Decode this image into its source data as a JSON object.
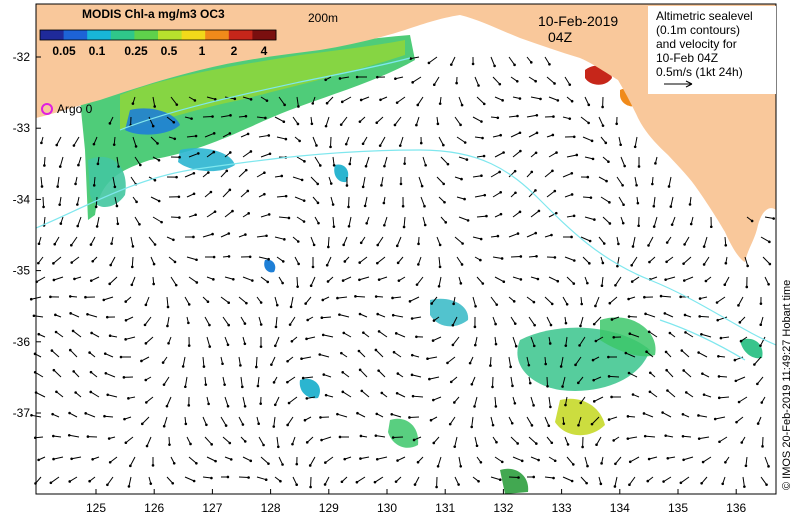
{
  "colorbar": {
    "title": "MODIS Chl-a mg/m3 OC3",
    "ticks": [
      "0.05",
      "0.1",
      "0.25",
      "0.5",
      "1",
      "2",
      "4"
    ],
    "colors": [
      "#1f2a9a",
      "#1d63d6",
      "#18b5d8",
      "#2fc78a",
      "#5fd14b",
      "#b7e02d",
      "#f2d91a",
      "#f08a1a",
      "#c6261a",
      "#7a0f0f"
    ]
  },
  "depth_label": "200m",
  "date_label": "10-Feb-2019",
  "time_label": "04Z",
  "legend": {
    "lines": [
      "Altimetric sealevel",
      "(0.1m contours)",
      "and velocity for",
      "10-Feb 04Z",
      "0.5m/s (1kt 24h)"
    ]
  },
  "argo_label": "Argo 0",
  "credit": "© IMOS 20-Feb-2019 11:49:27 Hobart time",
  "axes": {
    "lat_ticks": [
      "-32",
      "-33",
      "-34",
      "-35",
      "-36",
      "-37"
    ],
    "lon_ticks": [
      "125",
      "126",
      "127",
      "128",
      "129",
      "130",
      "131",
      "132",
      "133",
      "134",
      "135",
      "136"
    ]
  },
  "colors": {
    "land": "#f9c89b",
    "contour": "#7fe7ee",
    "argo": "#e020e0"
  }
}
